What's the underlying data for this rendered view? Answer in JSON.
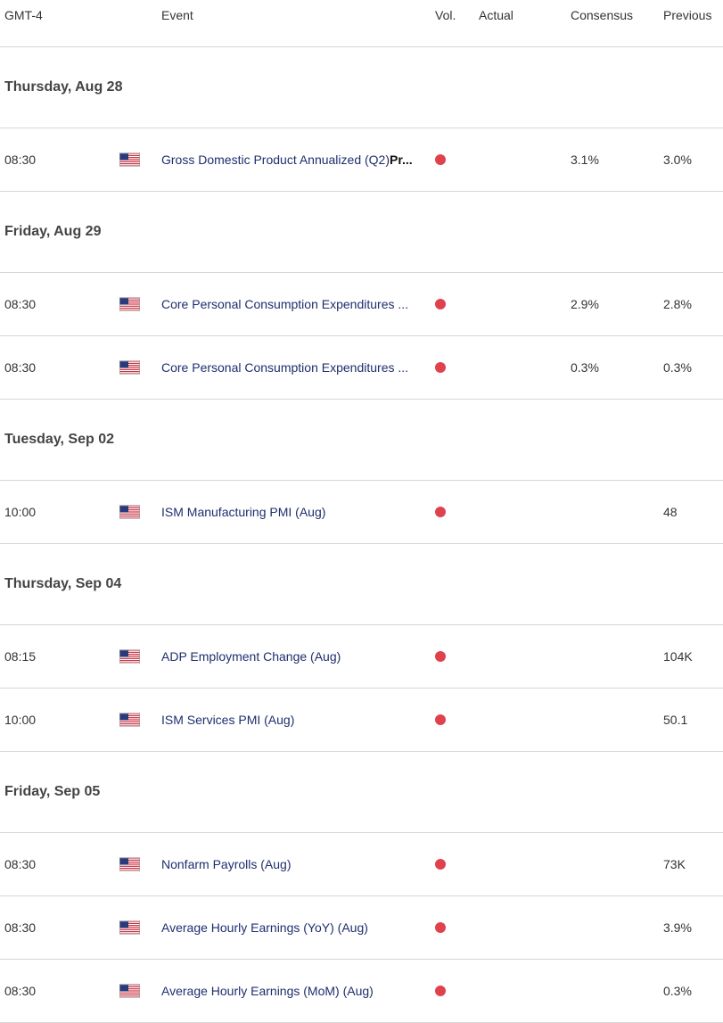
{
  "header": {
    "time": "GMT-4",
    "event": "Event",
    "vol": "Vol.",
    "actual": "Actual",
    "consensus": "Consensus",
    "previous": "Previous"
  },
  "colors": {
    "volatility_high": "#e0424d",
    "event_text": "#1f2e6e"
  },
  "flag_icon": "us-flag-icon",
  "days": [
    {
      "date": "Thursday, Aug 28",
      "events": [
        {
          "time": "08:30",
          "name": "Gross Domestic Product Annualized (Q2)",
          "suffix": "Pr...",
          "actual": "",
          "consensus": "3.1%",
          "previous": "3.0%"
        }
      ]
    },
    {
      "date": "Friday, Aug 29",
      "events": [
        {
          "time": "08:30",
          "name": "Core Personal Consumption Expenditures ...",
          "suffix": "",
          "actual": "",
          "consensus": "2.9%",
          "previous": "2.8%"
        },
        {
          "time": "08:30",
          "name": "Core Personal Consumption Expenditures ...",
          "suffix": "",
          "actual": "",
          "consensus": "0.3%",
          "previous": "0.3%"
        }
      ]
    },
    {
      "date": "Tuesday, Sep 02",
      "events": [
        {
          "time": "10:00",
          "name": "ISM Manufacturing PMI (Aug)",
          "suffix": "",
          "actual": "",
          "consensus": "",
          "previous": "48"
        }
      ]
    },
    {
      "date": "Thursday, Sep 04",
      "events": [
        {
          "time": "08:15",
          "name": "ADP Employment Change (Aug)",
          "suffix": "",
          "actual": "",
          "consensus": "",
          "previous": "104K"
        },
        {
          "time": "10:00",
          "name": "ISM Services PMI (Aug)",
          "suffix": "",
          "actual": "",
          "consensus": "",
          "previous": "50.1"
        }
      ]
    },
    {
      "date": "Friday, Sep 05",
      "events": [
        {
          "time": "08:30",
          "name": "Nonfarm Payrolls (Aug)",
          "suffix": "",
          "actual": "",
          "consensus": "",
          "previous": "73K"
        },
        {
          "time": "08:30",
          "name": "Average Hourly Earnings (YoY) (Aug)",
          "suffix": "",
          "actual": "",
          "consensus": "",
          "previous": "3.9%"
        },
        {
          "time": "08:30",
          "name": "Average Hourly Earnings (MoM) (Aug)",
          "suffix": "",
          "actual": "",
          "consensus": "",
          "previous": "0.3%"
        }
      ]
    }
  ]
}
